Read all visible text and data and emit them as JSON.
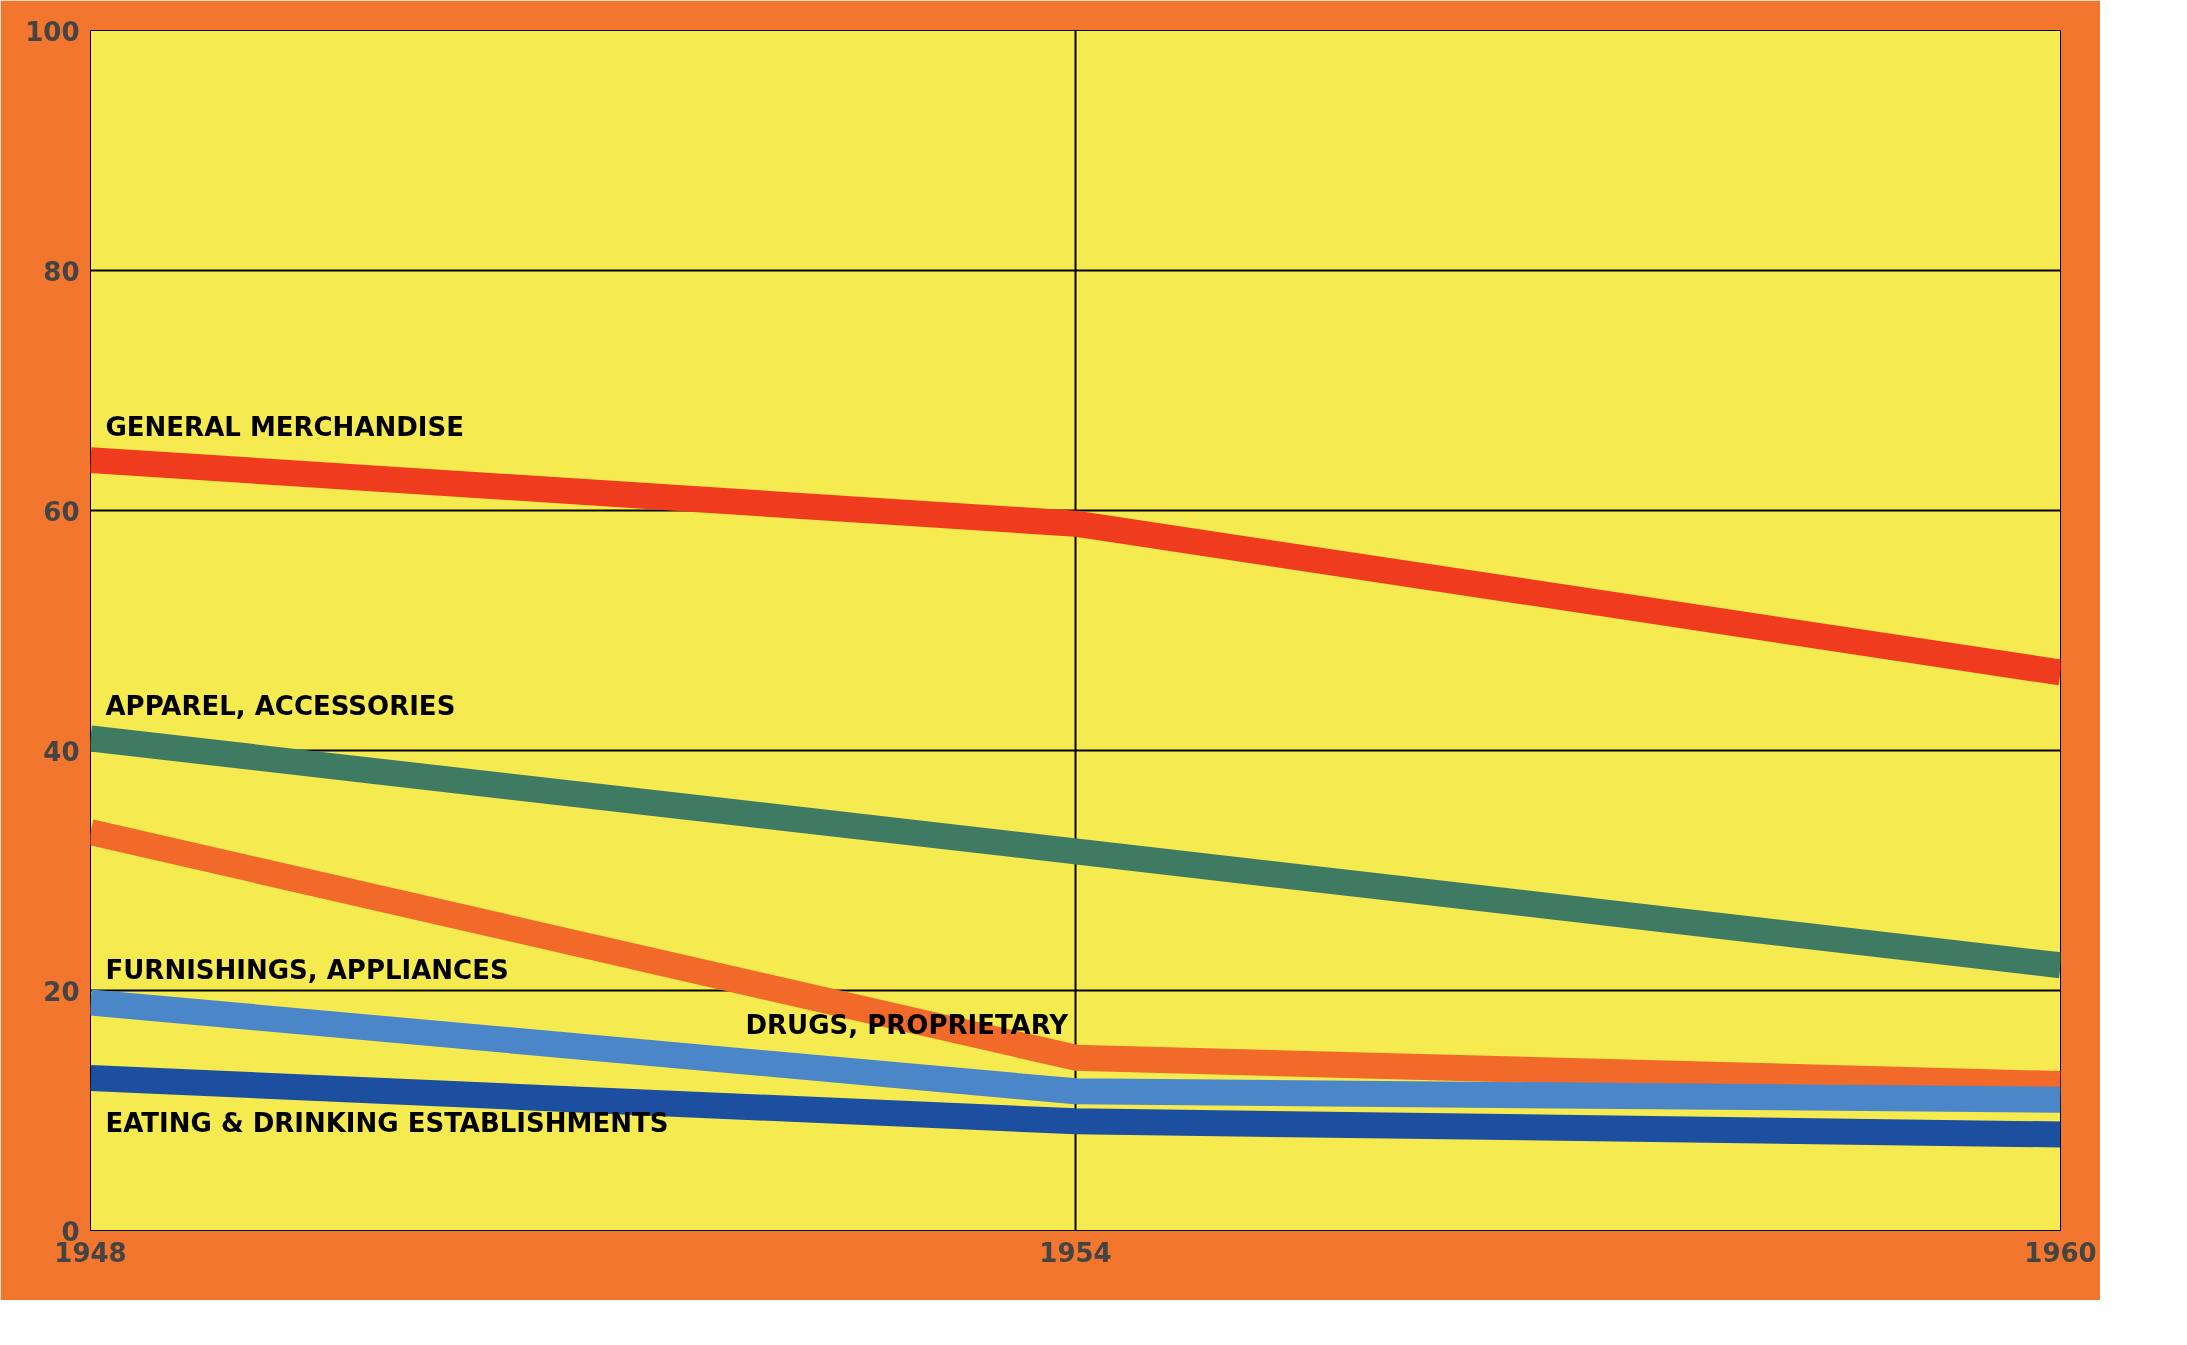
{
  "chart_data": {
    "type": "line",
    "x": [
      1948,
      1954,
      1960
    ],
    "xlim": [
      1948,
      1960
    ],
    "xticks": [
      1948,
      1954,
      1960
    ],
    "ylim": [
      0,
      100
    ],
    "yticks": [
      0,
      20,
      40,
      60,
      80,
      100
    ],
    "grid": true,
    "legend": false,
    "marker": "none",
    "line_style": "solid",
    "series": [
      {
        "name": "GENERAL MERCHANDISE",
        "color": "#f03c1e",
        "values": [
          64.2,
          58.9,
          46.5
        ]
      },
      {
        "name": "APPAREL, ACCESSORIES",
        "color": "#3f7a62",
        "values": [
          41,
          31.6,
          22.1
        ]
      },
      {
        "name": "DRUGS, PROPRIETARY",
        "color": "#f26a2a",
        "values": [
          33.2,
          14.4,
          12.2
        ]
      },
      {
        "name": "FURNISHINGS, APPLIANCES",
        "color": "#4a86c8",
        "values": [
          19,
          11.6,
          10.9
        ]
      },
      {
        "name": "EATING & DRINKING ESTABLISHMENTS",
        "color": "#1c4fa0",
        "values": [
          12.7,
          9.1,
          8
        ]
      }
    ]
  }
}
